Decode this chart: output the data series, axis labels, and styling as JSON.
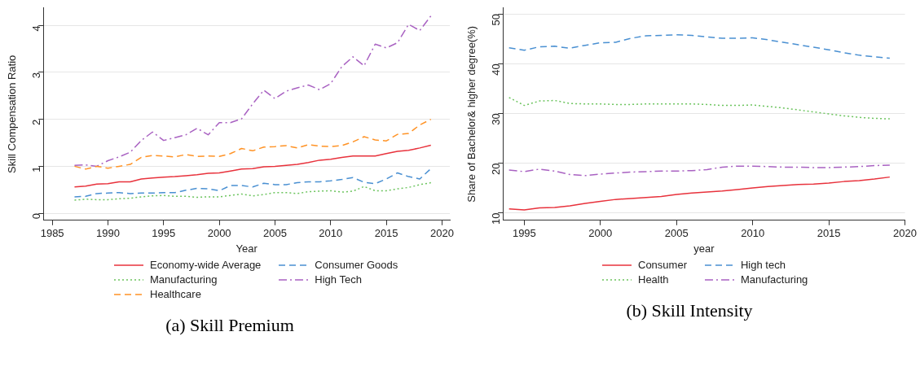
{
  "chart_data": [
    {
      "type": "line",
      "title": "(a) Skill Premium",
      "xlabel": "Year",
      "ylabel": "Skill Compensation Ratio",
      "grid": "y",
      "legend": "bottom",
      "marker": "none",
      "x": [
        1987,
        1988,
        1989,
        1990,
        1991,
        1992,
        1993,
        1994,
        1995,
        1996,
        1997,
        1998,
        1999,
        2000,
        2001,
        2002,
        2003,
        2004,
        2005,
        2006,
        2007,
        2008,
        2009,
        2010,
        2011,
        2012,
        2013,
        2014,
        2015,
        2016,
        2017,
        2018,
        2019
      ],
      "xlim": [
        1984.2,
        2020.7
      ],
      "xticks": [
        1985,
        1990,
        1995,
        2000,
        2005,
        2010,
        2015,
        2020
      ],
      "ylim": [
        -0.15,
        4.37
      ],
      "yticks": [
        0,
        1,
        2,
        3,
        4
      ],
      "series": [
        {
          "name": "Economy-wide Average",
          "color": "#e8323c",
          "line_style": "solid",
          "values": [
            0.56,
            0.58,
            0.62,
            0.63,
            0.67,
            0.67,
            0.73,
            0.75,
            0.77,
            0.78,
            0.8,
            0.82,
            0.85,
            0.86,
            0.9,
            0.94,
            0.95,
            0.99,
            1.0,
            1.02,
            1.04,
            1.08,
            1.13,
            1.15,
            1.19,
            1.22,
            1.22,
            1.22,
            1.27,
            1.32,
            1.34,
            1.39,
            1.45
          ]
        },
        {
          "name": "Manufacturing",
          "color": "#6cc45e",
          "line_style": "dotted",
          "values": [
            0.28,
            0.3,
            0.29,
            0.29,
            0.31,
            0.32,
            0.35,
            0.37,
            0.38,
            0.36,
            0.36,
            0.34,
            0.35,
            0.35,
            0.38,
            0.41,
            0.37,
            0.4,
            0.44,
            0.44,
            0.42,
            0.46,
            0.47,
            0.48,
            0.45,
            0.47,
            0.57,
            0.48,
            0.48,
            0.52,
            0.55,
            0.61,
            0.65
          ]
        },
        {
          "name": "Healthcare",
          "color": "#ff9326",
          "line_style": "dashed",
          "values": [
            1.0,
            0.94,
            1.0,
            0.96,
            1.0,
            1.04,
            1.19,
            1.23,
            1.22,
            1.2,
            1.25,
            1.21,
            1.22,
            1.21,
            1.27,
            1.38,
            1.33,
            1.41,
            1.42,
            1.44,
            1.39,
            1.46,
            1.43,
            1.42,
            1.44,
            1.52,
            1.63,
            1.56,
            1.54,
            1.68,
            1.7,
            1.88,
            2.0
          ]
        },
        {
          "name": "Consumer Goods",
          "color": "#4a90d2",
          "line_style": "dashed",
          "values": [
            0.35,
            0.36,
            0.42,
            0.43,
            0.44,
            0.42,
            0.43,
            0.43,
            0.44,
            0.44,
            0.49,
            0.53,
            0.52,
            0.48,
            0.59,
            0.59,
            0.56,
            0.64,
            0.61,
            0.61,
            0.65,
            0.67,
            0.67,
            0.69,
            0.72,
            0.76,
            0.66,
            0.63,
            0.73,
            0.86,
            0.78,
            0.73,
            0.95
          ]
        },
        {
          "name": "High Tech",
          "color": "#a962c2",
          "line_style": "dashdot",
          "values": [
            1.02,
            1.03,
            1.0,
            1.12,
            1.2,
            1.3,
            1.55,
            1.73,
            1.55,
            1.61,
            1.67,
            1.81,
            1.67,
            1.93,
            1.93,
            2.01,
            2.33,
            2.62,
            2.44,
            2.6,
            2.67,
            2.73,
            2.63,
            2.76,
            3.12,
            3.33,
            3.14,
            3.6,
            3.52,
            3.63,
            4.02,
            3.89,
            4.2
          ]
        }
      ]
    },
    {
      "type": "line",
      "title": "(b) Skill Intensity",
      "xlabel": "year",
      "ylabel": "Share of Bachelor& higher degree(%)",
      "grid": "y",
      "legend": "bottom",
      "marker": "none",
      "x": [
        1994,
        1995,
        1996,
        1997,
        1998,
        1999,
        2000,
        2001,
        2002,
        2003,
        2004,
        2005,
        2006,
        2007,
        2008,
        2009,
        2010,
        2011,
        2012,
        2013,
        2014,
        2015,
        2016,
        2017,
        2018,
        2019
      ],
      "xlim": [
        1993.6,
        2020
      ],
      "xticks": [
        1995,
        2000,
        2005,
        2010,
        2015,
        2020
      ],
      "ylim": [
        8.5,
        51.2
      ],
      "yticks": [
        10,
        20,
        30,
        40,
        50
      ],
      "series": [
        {
          "name": "Consumer",
          "color": "#e8323c",
          "line_style": "solid",
          "values": [
            10.8,
            10.6,
            11.0,
            11.1,
            11.4,
            11.9,
            12.3,
            12.7,
            12.9,
            13.1,
            13.3,
            13.7,
            14.0,
            14.2,
            14.4,
            14.7,
            15.0,
            15.3,
            15.5,
            15.7,
            15.8,
            16.0,
            16.3,
            16.5,
            16.8,
            17.2
          ]
        },
        {
          "name": "Health",
          "color": "#6cc45e",
          "line_style": "dotted",
          "values": [
            33.2,
            31.6,
            32.5,
            32.6,
            32.0,
            31.9,
            31.9,
            31.8,
            31.8,
            31.9,
            31.9,
            31.9,
            31.9,
            31.8,
            31.6,
            31.6,
            31.7,
            31.4,
            31.1,
            30.7,
            30.3,
            29.9,
            29.5,
            29.2,
            29.0,
            28.9
          ]
        },
        {
          "name": "High tech",
          "color": "#4a90d2",
          "line_style": "dashed",
          "values": [
            43.2,
            42.7,
            43.4,
            43.5,
            43.1,
            43.7,
            44.2,
            44.3,
            45.1,
            45.6,
            45.7,
            45.8,
            45.7,
            45.4,
            45.1,
            45.1,
            45.2,
            44.8,
            44.3,
            43.8,
            43.3,
            42.8,
            42.2,
            41.7,
            41.4,
            41.1
          ]
        },
        {
          "name": "Manufacturing",
          "color": "#a962c2",
          "line_style": "dashdot",
          "values": [
            18.6,
            18.3,
            18.8,
            18.4,
            17.7,
            17.5,
            17.8,
            18.0,
            18.2,
            18.3,
            18.4,
            18.4,
            18.5,
            18.7,
            19.2,
            19.4,
            19.4,
            19.3,
            19.2,
            19.2,
            19.1,
            19.1,
            19.2,
            19.3,
            19.5,
            19.6
          ]
        }
      ]
    }
  ]
}
